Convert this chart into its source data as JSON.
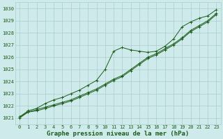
{
  "title": "Graphe pression niveau de la mer (hPa)",
  "xlabel_hours": [
    0,
    1,
    2,
    3,
    4,
    5,
    6,
    7,
    8,
    9,
    10,
    11,
    12,
    13,
    14,
    15,
    16,
    17,
    18,
    19,
    20,
    21,
    22,
    23
  ],
  "line_bump": [
    1021.1,
    1021.6,
    1021.8,
    1022.2,
    1022.5,
    1022.7,
    1023.0,
    1023.3,
    1023.7,
    1024.1,
    1025.0,
    1026.5,
    1026.8,
    1026.6,
    1026.5,
    1026.4,
    1026.5,
    1026.9,
    1027.5,
    1028.5,
    1028.9,
    1029.2,
    1029.4,
    1029.9
  ],
  "line_linear1": [
    1021.1,
    1021.5,
    1021.7,
    1021.9,
    1022.1,
    1022.3,
    1022.5,
    1022.8,
    1023.1,
    1023.4,
    1023.8,
    1024.2,
    1024.5,
    1025.0,
    1025.5,
    1026.0,
    1026.3,
    1026.7,
    1027.1,
    1027.6,
    1028.2,
    1028.6,
    1029.0,
    1029.6
  ],
  "line_linear2": [
    1021.0,
    1021.5,
    1021.6,
    1021.8,
    1022.0,
    1022.2,
    1022.4,
    1022.7,
    1023.0,
    1023.3,
    1023.7,
    1024.1,
    1024.4,
    1024.9,
    1025.4,
    1025.9,
    1026.2,
    1026.6,
    1027.0,
    1027.5,
    1028.1,
    1028.5,
    1028.9,
    1029.5
  ],
  "ylim_min": 1020.5,
  "ylim_max": 1030.5,
  "yticks": [
    1021,
    1022,
    1023,
    1024,
    1025,
    1026,
    1027,
    1028,
    1029,
    1030
  ],
  "bg_color": "#ceeaea",
  "grid_color": "#a8cccc",
  "line_color": "#1a5c1a",
  "title_color": "#1a5c1a",
  "tick_fontsize": 5.0,
  "label_fontsize": 6.5,
  "linewidth": 0.7,
  "markersize": 2.2
}
